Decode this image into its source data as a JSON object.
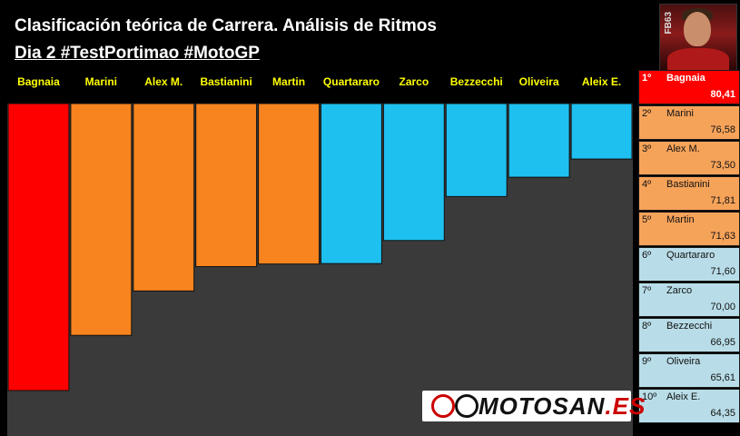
{
  "header": {
    "title": "Clasificación teórica de Carrera. Análisis de Ritmos",
    "subtitle": "Dia 2 #TestPortimao #MotoGP"
  },
  "avatar": {
    "tag": "FB63"
  },
  "logo": {
    "text_main": "MOTOSAN",
    "text_suffix": ".ES"
  },
  "colors": {
    "leader": "#ff0000",
    "orange": "#f7841e",
    "blue": "#1ec0f0",
    "label": "#ffff00",
    "background": "#000000",
    "floor": "#3a3a3a",
    "rank_orange": "#f6a35a",
    "rank_blue": "#b8dde8"
  },
  "chart_data": {
    "type": "bar",
    "categories": [
      "Bagnaia",
      "Marini",
      "Alex M.",
      "Bastianini",
      "Martin",
      "Quartararo",
      "Zarco",
      "Bezzecchi",
      "Oliveira",
      "Aleix E."
    ],
    "values": [
      80.41,
      76.58,
      73.5,
      71.81,
      71.63,
      71.6,
      70.0,
      66.95,
      65.61,
      64.35
    ],
    "value_labels": [
      "80,41",
      "76,58",
      "73,50",
      "71,81",
      "71,63",
      "71,60",
      "70,00",
      "66,95",
      "65,61",
      "64,35"
    ],
    "bar_colors": [
      "#ff0000",
      "#f7841e",
      "#f7841e",
      "#f7841e",
      "#f7841e",
      "#1ec0f0",
      "#1ec0f0",
      "#1ec0f0",
      "#1ec0f0",
      "#1ec0f0"
    ],
    "title": "Clasificación teórica de Carrera. Análisis de Ritmos",
    "xlabel": "",
    "ylabel": "",
    "grid": false,
    "legend": "none"
  },
  "ranking": [
    {
      "pos": "1º",
      "name": "Bagnaia",
      "value": "80,41",
      "color": "#ff0000",
      "first": true
    },
    {
      "pos": "2º",
      "name": "Marini",
      "value": "76,58",
      "color": "#f6a35a"
    },
    {
      "pos": "3º",
      "name": "Alex M.",
      "value": "73,50",
      "color": "#f6a35a"
    },
    {
      "pos": "4º",
      "name": "Bastianini",
      "value": "71,81",
      "color": "#f6a35a"
    },
    {
      "pos": "5º",
      "name": "Martin",
      "value": "71,63",
      "color": "#f6a35a"
    },
    {
      "pos": "6º",
      "name": "Quartararo",
      "value": "71,60",
      "color": "#b8dde8"
    },
    {
      "pos": "7º",
      "name": "Zarco",
      "value": "70,00",
      "color": "#b8dde8"
    },
    {
      "pos": "8º",
      "name": "Bezzecchi",
      "value": "66,95",
      "color": "#b8dde8"
    },
    {
      "pos": "9º",
      "name": "Oliveira",
      "value": "65,61",
      "color": "#b8dde8"
    },
    {
      "pos": "10º",
      "name": "Aleix E.",
      "value": "64,35",
      "color": "#b8dde8"
    }
  ]
}
